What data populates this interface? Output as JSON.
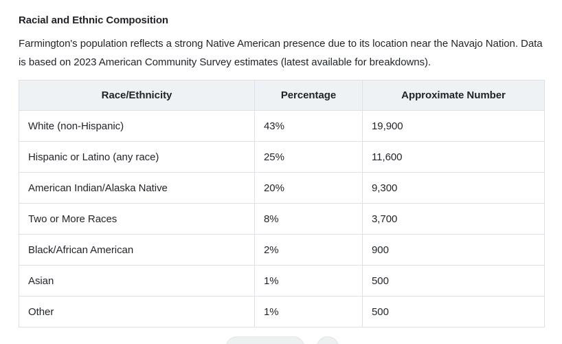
{
  "page": {
    "title": "Racial and Ethnic Composition",
    "intro": "Farmington's population reflects a strong Native American presence due to its location near the Navajo Nation. Data is based on 2023 American Community Survey estimates (latest available for breakdowns)."
  },
  "table": {
    "columns": [
      "Race/Ethnicity",
      "Percentage",
      "Approximate Number"
    ],
    "rows": [
      {
        "race": "White (non-Hispanic)",
        "percentage": "43%",
        "number": "19,900"
      },
      {
        "race": "Hispanic or Latino (any race)",
        "percentage": "25%",
        "number": "11,600"
      },
      {
        "race": "American Indian/Alaska Native",
        "percentage": "20%",
        "number": "9,300"
      },
      {
        "race": "Two or More Races",
        "percentage": "8%",
        "number": "3,700"
      },
      {
        "race": "Black/African American",
        "percentage": "2%",
        "number": "900"
      },
      {
        "race": "Asian",
        "percentage": "1%",
        "number": "500"
      },
      {
        "race": "Other",
        "percentage": "1%",
        "number": "500"
      }
    ]
  },
  "colors": {
    "text": "#1f2328",
    "table_border": "#dde1e6",
    "header_background": "#eff2f4",
    "action_button_background": "#eef1f2",
    "action_button_border": "#e0e5e8",
    "page_background": "#ffffff"
  }
}
